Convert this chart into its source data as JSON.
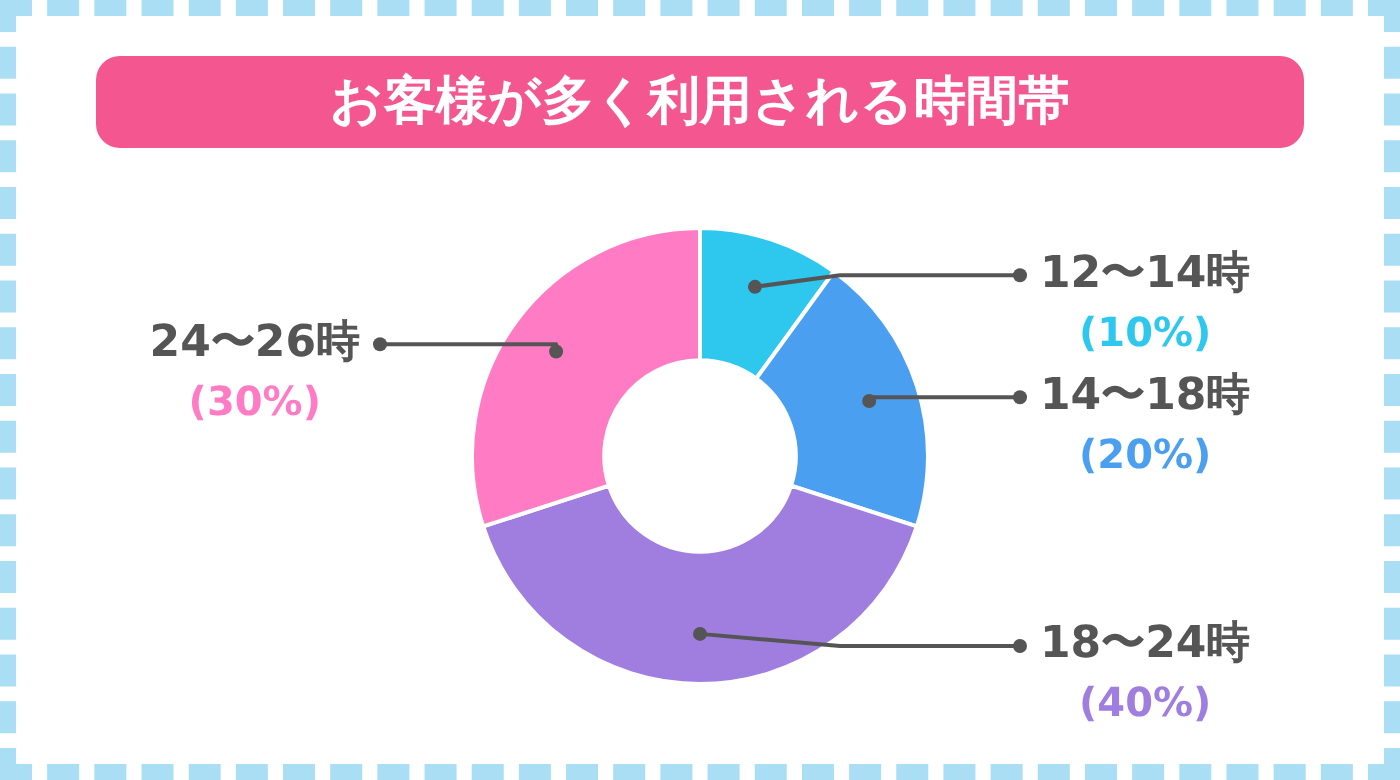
{
  "chart_data": {
    "type": "donut",
    "title": "お客様が多く利用される時間帯",
    "categories": [
      "12〜14時",
      "14〜18時",
      "18〜24時",
      "24〜26時"
    ],
    "values": [
      10,
      20,
      40,
      30
    ],
    "colors": [
      "#2ec7ee",
      "#4b9ff0",
      "#a07ee0",
      "#ff7cc4"
    ],
    "value_labels": [
      "(10%)",
      "(20%)",
      "(40%)",
      "(30%)"
    ],
    "legend": false
  }
}
